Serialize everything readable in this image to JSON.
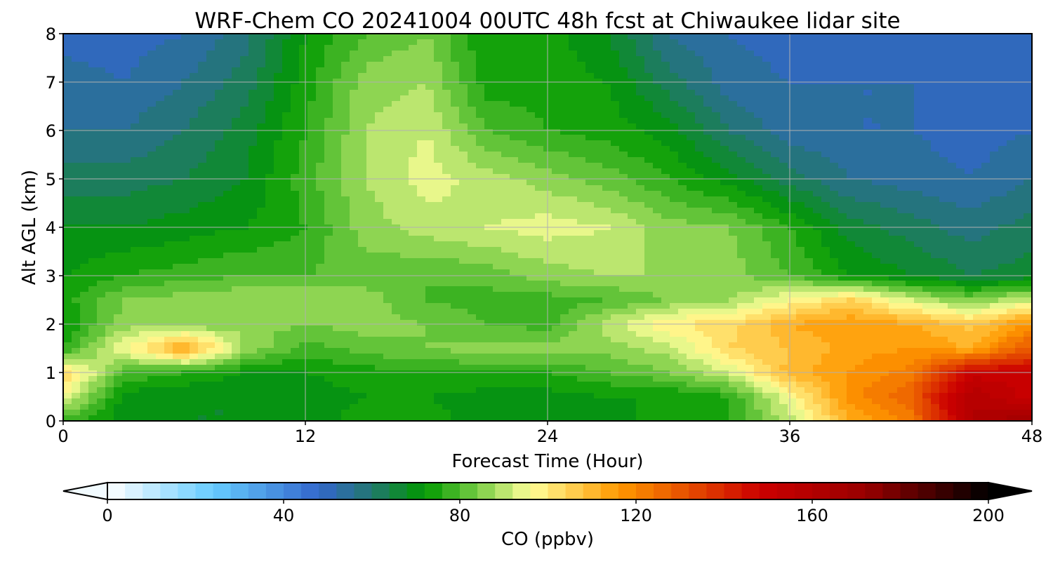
{
  "chart_data": {
    "type": "heatmap",
    "title": "WRF-Chem CO  20241004 00UTC 48h fcst at Chiwaukee lidar site",
    "xlabel": "Forecast Time (Hour)",
    "ylabel": "Alt AGL (km)",
    "xlim": [
      0,
      48
    ],
    "ylim": [
      0,
      8
    ],
    "xticks": [
      "0",
      "12",
      "24",
      "36",
      "48"
    ],
    "yticks": [
      "0",
      "1",
      "2",
      "3",
      "4",
      "5",
      "6",
      "7",
      "8"
    ],
    "grid": true,
    "x": [
      0,
      3,
      6,
      9,
      12,
      15,
      18,
      21,
      24,
      27,
      30,
      33,
      36,
      39,
      42,
      45,
      48
    ],
    "y": [
      0,
      0.5,
      1,
      1.5,
      2,
      2.5,
      3,
      4,
      5,
      6,
      7,
      8
    ],
    "z": [
      [
        78,
        70,
        68,
        68,
        70,
        74,
        74,
        70,
        70,
        70,
        74,
        76,
        90,
        112,
        122,
        160,
        170
      ],
      [
        96,
        70,
        68,
        68,
        70,
        72,
        72,
        70,
        70,
        72,
        72,
        76,
        96,
        118,
        128,
        160,
        150
      ],
      [
        104,
        80,
        76,
        72,
        72,
        74,
        76,
        76,
        76,
        80,
        84,
        92,
        110,
        116,
        122,
        150,
        150
      ],
      [
        76,
        96,
        114,
        88,
        78,
        82,
        84,
        86,
        86,
        86,
        90,
        104,
        108,
        114,
        116,
        112,
        130
      ],
      [
        72,
        86,
        84,
        86,
        84,
        86,
        84,
        80,
        78,
        90,
        100,
        102,
        112,
        116,
        112,
        106,
        118
      ],
      [
        74,
        84,
        86,
        88,
        88,
        86,
        80,
        78,
        78,
        80,
        84,
        88,
        96,
        104,
        92,
        84,
        92
      ],
      [
        72,
        76,
        78,
        80,
        80,
        82,
        80,
        82,
        86,
        88,
        88,
        86,
        80,
        72,
        68,
        64,
        66
      ],
      [
        68,
        68,
        70,
        72,
        76,
        86,
        90,
        92,
        94,
        92,
        86,
        84,
        76,
        66,
        62,
        58,
        62
      ],
      [
        62,
        62,
        64,
        68,
        78,
        88,
        94,
        90,
        86,
        82,
        76,
        70,
        62,
        56,
        54,
        52,
        56
      ],
      [
        56,
        56,
        60,
        66,
        76,
        88,
        92,
        80,
        76,
        74,
        70,
        60,
        54,
        52,
        52,
        50,
        52
      ],
      [
        54,
        52,
        56,
        62,
        74,
        86,
        88,
        74,
        74,
        72,
        62,
        54,
        52,
        52,
        52,
        50,
        52
      ],
      [
        50,
        50,
        52,
        58,
        72,
        80,
        84,
        72,
        74,
        68,
        56,
        52,
        50,
        50,
        50,
        50,
        50
      ]
    ],
    "colorbar": {
      "label": "CO  (ppbv)",
      "min": 0,
      "max": 200,
      "step": 4,
      "extend": "both",
      "ticks": [
        "0",
        "40",
        "80",
        "120",
        "160",
        "200"
      ],
      "colormap": [
        [
          0,
          "#ffffff"
        ],
        [
          24,
          "#66ccff"
        ],
        [
          48,
          "#3366cc"
        ],
        [
          60,
          "#22776e"
        ],
        [
          72,
          "#009900"
        ],
        [
          84,
          "#77cc44"
        ],
        [
          96,
          "#ffff99"
        ],
        [
          116,
          "#ff9900"
        ],
        [
          148,
          "#cc0000"
        ],
        [
          172,
          "#990000"
        ],
        [
          200,
          "#000000"
        ]
      ]
    }
  }
}
